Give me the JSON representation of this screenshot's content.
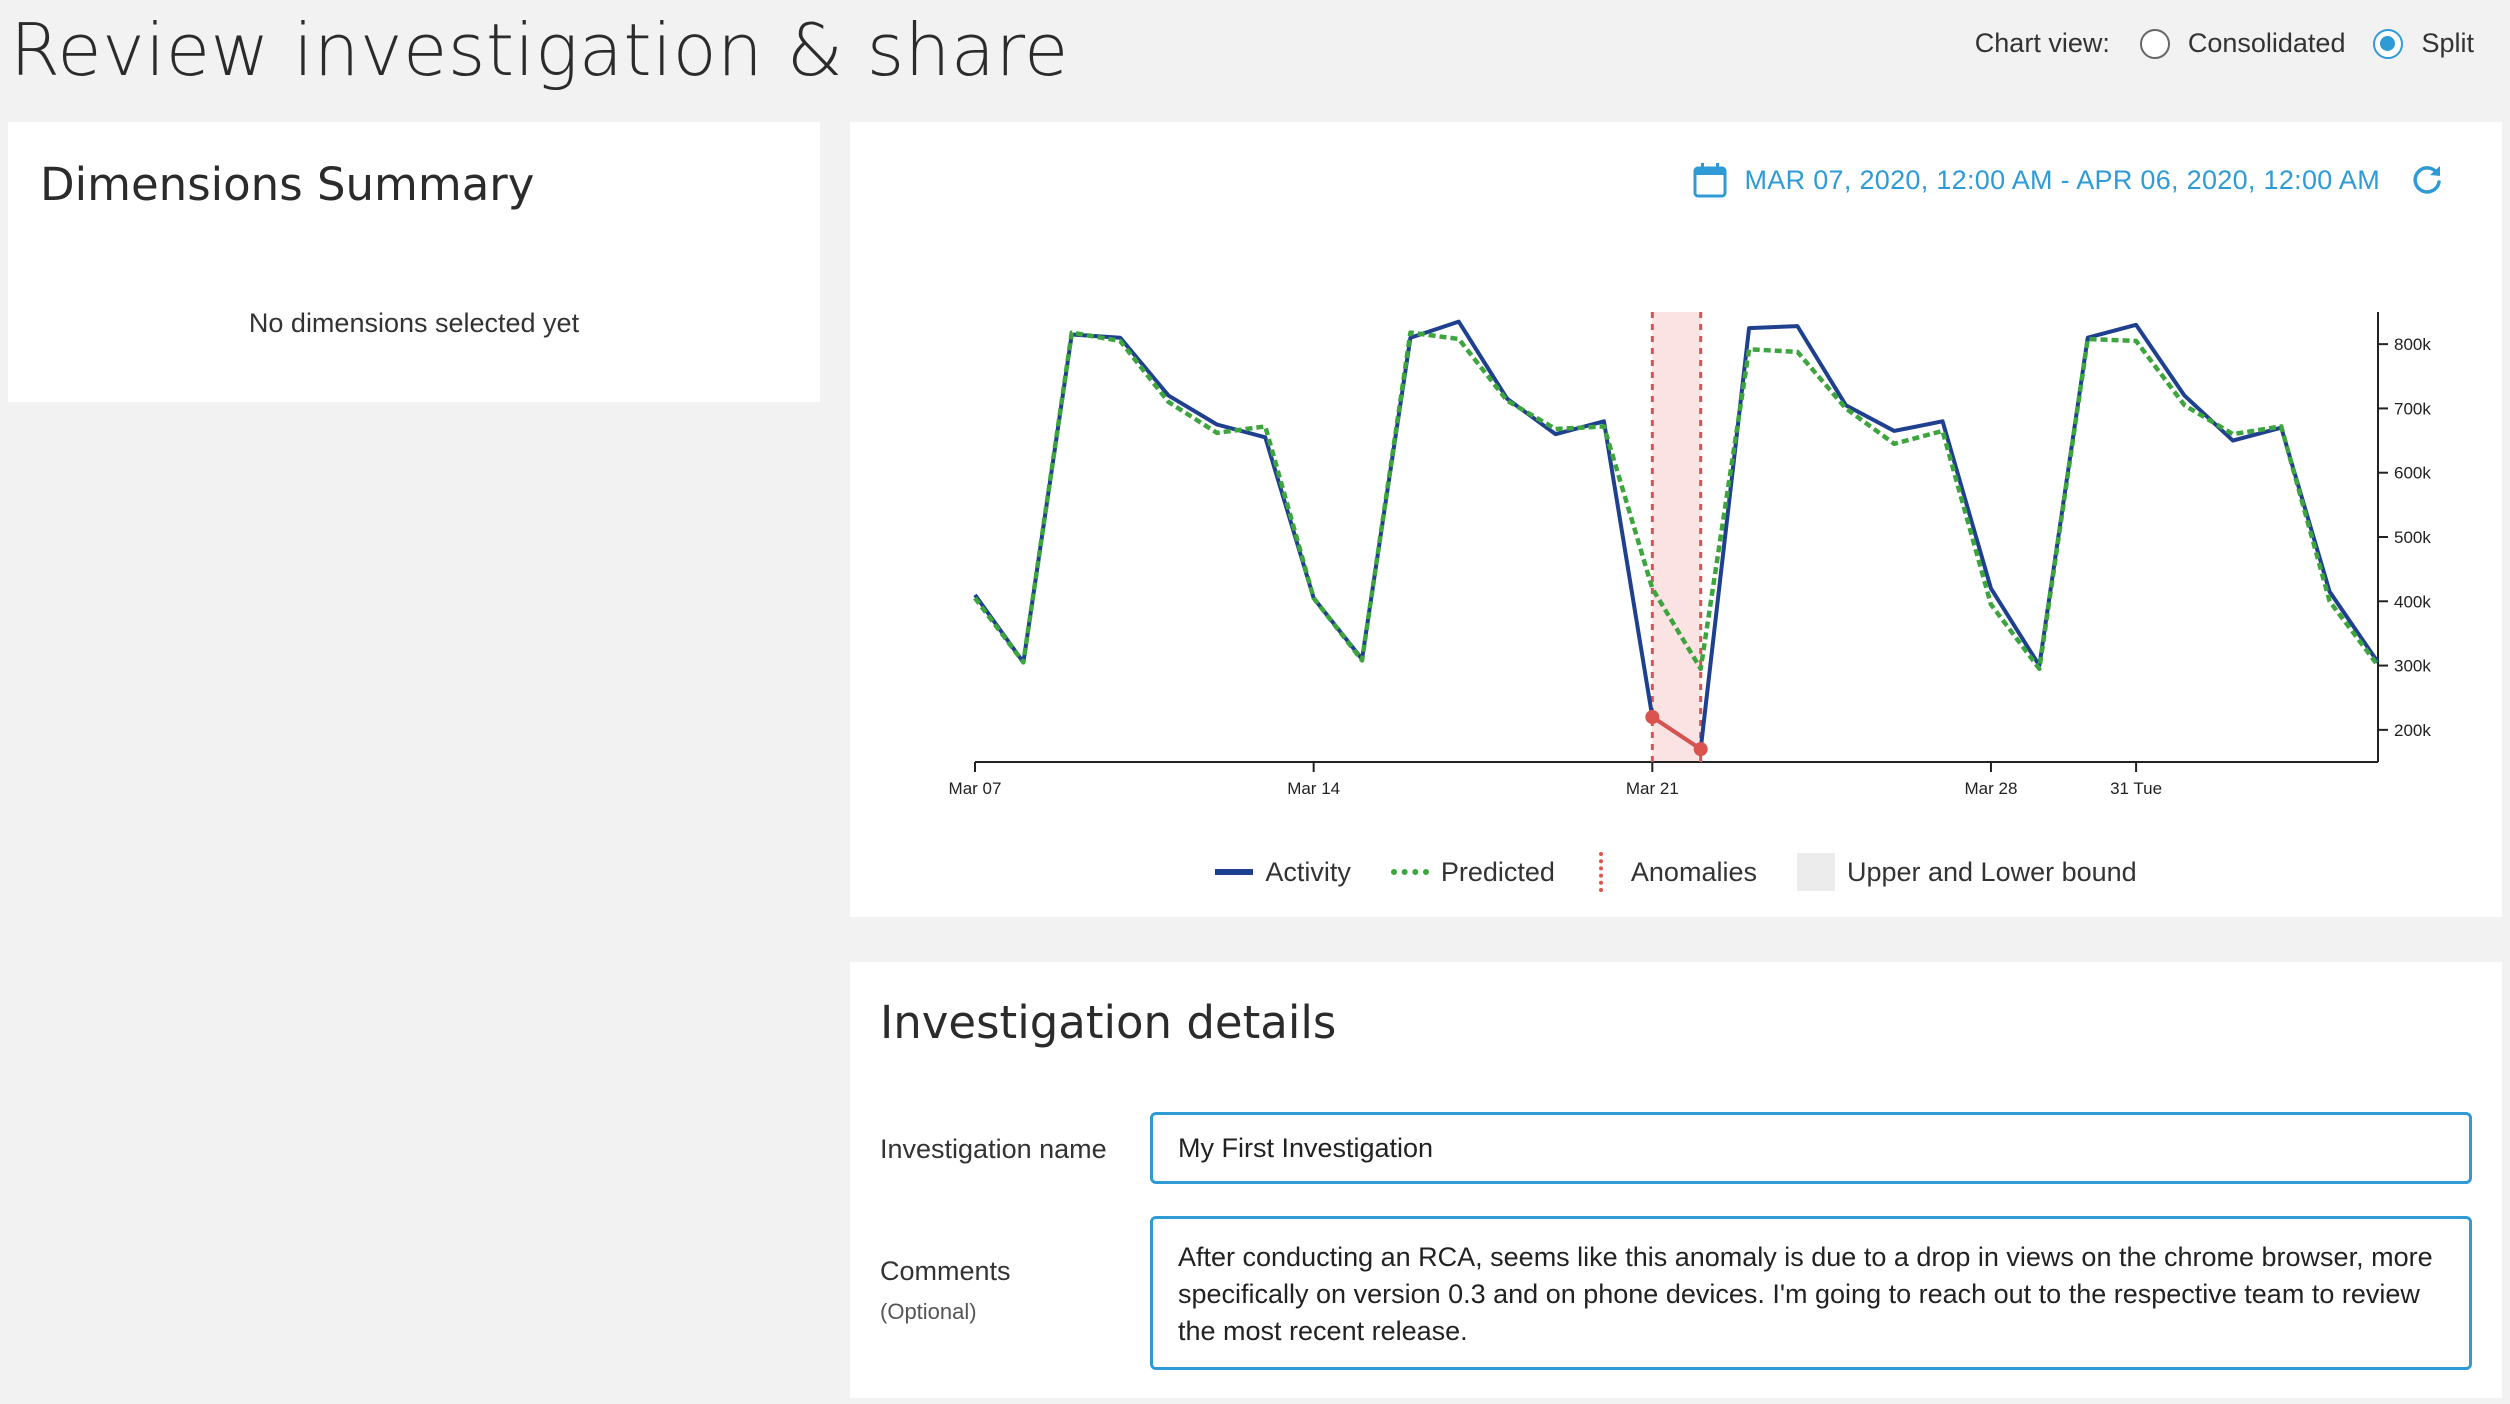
{
  "page": {
    "title": "Review investigation & share"
  },
  "chart_view": {
    "label": "Chart view:",
    "options": [
      {
        "label": "Consolidated",
        "selected": false
      },
      {
        "label": "Split",
        "selected": true
      }
    ]
  },
  "dimensions_summary": {
    "title": "Dimensions Summary",
    "empty_text": "No dimensions selected yet"
  },
  "date_range": {
    "text": "MAR 07, 2020, 12:00 AM - APR 06, 2020, 12:00 AM"
  },
  "colors": {
    "accent": "#2f9bd6",
    "activity": "#1f3f8f",
    "predicted": "#3da53d",
    "anomaly": "#d9534f",
    "anomaly_band": "#fbe3e3"
  },
  "chart_data": {
    "type": "line",
    "x_tick_labels": [
      "Mar 07",
      "Mar 14",
      "Mar 21",
      "Mar 28",
      "31 Tue"
    ],
    "x_tick_days": [
      0,
      7,
      14,
      21,
      24
    ],
    "y_tick_labels": [
      "200k",
      "300k",
      "400k",
      "500k",
      "600k",
      "700k",
      "800k"
    ],
    "y_tick_values": [
      200000,
      300000,
      400000,
      500000,
      600000,
      700000,
      800000
    ],
    "ylim": [
      150000,
      850000
    ],
    "xlim_days": [
      0,
      29
    ],
    "series": [
      {
        "name": "Activity",
        "style": "solid",
        "x_days": [
          0,
          1,
          2,
          3,
          4,
          5,
          6,
          7,
          8,
          9,
          10,
          11,
          12,
          13,
          14,
          15,
          16,
          17,
          18,
          19,
          20,
          21,
          22,
          23,
          24,
          25,
          26,
          27,
          28,
          29
        ],
        "values": [
          410000,
          305000,
          815000,
          810000,
          720000,
          675000,
          655000,
          405000,
          310000,
          810000,
          835000,
          715000,
          660000,
          680000,
          220000,
          170000,
          825000,
          828000,
          705000,
          665000,
          680000,
          420000,
          300000,
          810000,
          830000,
          720000,
          650000,
          670000,
          415000,
          305000
        ]
      },
      {
        "name": "Predicted",
        "style": "dotted",
        "x_days": [
          0,
          1,
          2,
          3,
          4,
          5,
          6,
          7,
          8,
          9,
          10,
          11,
          12,
          13,
          14,
          15,
          16,
          17,
          18,
          19,
          20,
          21,
          22,
          23,
          24,
          25,
          26,
          27,
          28,
          29
        ],
        "values": [
          405000,
          305000,
          818000,
          805000,
          710000,
          662000,
          672000,
          405000,
          308000,
          818000,
          808000,
          712000,
          668000,
          672000,
          420000,
          295000,
          792000,
          788000,
          700000,
          645000,
          665000,
          395000,
          295000,
          808000,
          805000,
          705000,
          660000,
          672000,
          400000,
          300000
        ]
      }
    ],
    "anomaly_range_days": [
      14,
      15
    ],
    "anomaly_points": [
      {
        "x_day": 14,
        "value": 220000
      },
      {
        "x_day": 15,
        "value": 170000
      }
    ],
    "legend": [
      "Activity",
      "Predicted",
      "Anomalies",
      "Upper and Lower bound"
    ],
    "legend_position": "bottom"
  },
  "investigation": {
    "title": "Investigation details",
    "name_label": "Investigation name",
    "name_value": "My First Investigation",
    "comments_label": "Comments",
    "comments_sub": "(Optional)",
    "comments_value": "After conducting an RCA, seems like this anomaly is due to a drop in views on the chrome browser, more specifically on version 0.3 and on phone devices. I'm going to reach out to the respective team to review the most recent release."
  }
}
